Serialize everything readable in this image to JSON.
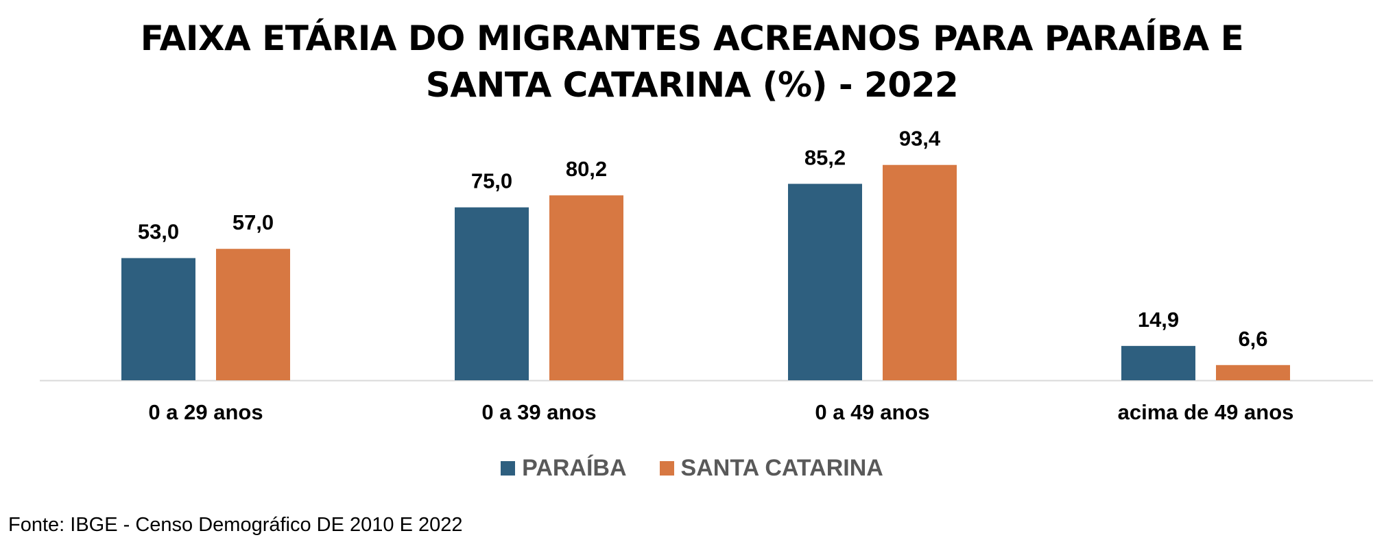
{
  "chart_data": {
    "type": "bar",
    "title_lines": [
      "FAIXA ETÁRIA DO MIGRANTES ACREANOS PARA PARAÍBA E",
      "SANTA CATARINA (%) - 2022"
    ],
    "categories": [
      "0 a 29 anos",
      "0 a 39 anos",
      "0 a 49 anos",
      "acima de 49 anos"
    ],
    "series": [
      {
        "name": "PARAÍBA",
        "color": "#2E5F7F",
        "values": [
          53.0,
          75.0,
          85.2,
          14.9
        ],
        "labels": [
          "53,0",
          "75,0",
          "85,2",
          "14,9"
        ]
      },
      {
        "name": "SANTA CATARINA",
        "color": "#D77842",
        "values": [
          57.0,
          80.2,
          93.4,
          6.6
        ],
        "labels": [
          "57,0",
          "80,2",
          "93,4",
          "6,6"
        ]
      }
    ],
    "ylim": [
      0,
      100
    ],
    "grid": false,
    "legend_position": "bottom",
    "xlabel": "",
    "ylabel": ""
  },
  "source": "Fonte: IBGE - Censo Demográfico DE 2010 E 2022"
}
